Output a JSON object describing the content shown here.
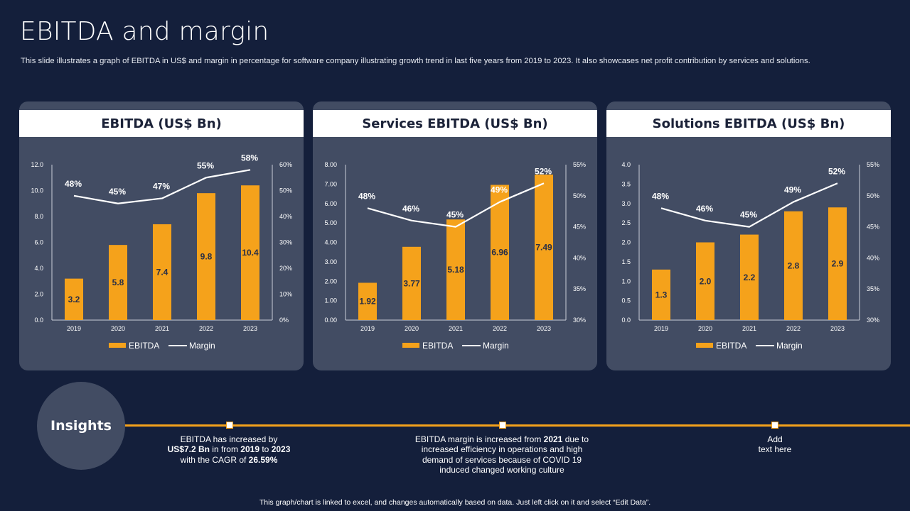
{
  "title": "EBITDA and margin",
  "subtitle": "This slide illustrates a graph of EBITDA  in US$ and margin in percentage for software company illustrating growth trend in last five years from 2019 to 2023. It also showcases net profit contribution by services and solutions.",
  "colors": {
    "background": "#141f3b",
    "panel": "#424c63",
    "bar": "#f5a21b",
    "line": "#ffffff",
    "accent": "#f5a21b"
  },
  "legend": {
    "bar_label": "EBITDA",
    "line_label": "Margin"
  },
  "chart_data": [
    {
      "type": "bar+line",
      "title": "EBITDA (US$ Bn)",
      "categories": [
        "2019",
        "2020",
        "2021",
        "2022",
        "2023"
      ],
      "series": [
        {
          "name": "EBITDA",
          "type": "bar",
          "values": [
            3.2,
            5.8,
            7.4,
            9.8,
            10.4
          ],
          "labels": [
            "3.2",
            "5.8",
            "7.4",
            "9.8",
            "10.4"
          ]
        },
        {
          "name": "Margin",
          "type": "line",
          "values": [
            48,
            45,
            47,
            55,
            58
          ],
          "labels": [
            "48%",
            "45%",
            "47%",
            "55%",
            "58%"
          ]
        }
      ],
      "left_axis": {
        "min": 0,
        "max": 12,
        "ticks": [
          "0.0",
          "2.0",
          "4.0",
          "6.0",
          "8.0",
          "10.0",
          "12.0"
        ]
      },
      "right_axis": {
        "min": 0,
        "max": 60,
        "ticks": [
          "0%",
          "10%",
          "20%",
          "30%",
          "40%",
          "50%",
          "60%"
        ]
      }
    },
    {
      "type": "bar+line",
      "title": "Services EBITDA (US$ Bn)",
      "categories": [
        "2019",
        "2020",
        "2021",
        "2022",
        "2023"
      ],
      "series": [
        {
          "name": "EBITDA",
          "type": "bar",
          "values": [
            1.92,
            3.77,
            5.18,
            6.96,
            7.49
          ],
          "labels": [
            "1.92",
            "3.77",
            "5.18",
            "6.96",
            "7.49"
          ]
        },
        {
          "name": "Margin",
          "type": "line",
          "values": [
            48,
            46,
            45,
            49,
            52
          ],
          "labels": [
            "48%",
            "46%",
            "45%",
            "49%",
            "52%"
          ]
        }
      ],
      "left_axis": {
        "min": 0,
        "max": 8,
        "ticks": [
          "0.00",
          "1.00",
          "2.00",
          "3.00",
          "4.00",
          "5.00",
          "6.00",
          "7.00",
          "8.00"
        ]
      },
      "right_axis": {
        "min": 30,
        "max": 55,
        "ticks": [
          "30%",
          "35%",
          "40%",
          "45%",
          "50%",
          "55%"
        ]
      }
    },
    {
      "type": "bar+line",
      "title": "Solutions EBITDA (US$ Bn)",
      "categories": [
        "2019",
        "2020",
        "2021",
        "2022",
        "2023"
      ],
      "series": [
        {
          "name": "EBITDA",
          "type": "bar",
          "values": [
            1.3,
            2.0,
            2.2,
            2.8,
            2.9
          ],
          "labels": [
            "1.3",
            "2.0",
            "2.2",
            "2.8",
            "2.9"
          ]
        },
        {
          "name": "Margin",
          "type": "line",
          "values": [
            48,
            46,
            45,
            49,
            52
          ],
          "labels": [
            "48%",
            "46%",
            "45%",
            "49%",
            "52%"
          ]
        }
      ],
      "left_axis": {
        "min": 0,
        "max": 4,
        "ticks": [
          "0.0",
          "0.5",
          "1.0",
          "1.5",
          "2.0",
          "2.5",
          "3.0",
          "3.5",
          "4.0"
        ]
      },
      "right_axis": {
        "min": 30,
        "max": 55,
        "ticks": [
          "30%",
          "35%",
          "40%",
          "45%",
          "50%",
          "55%"
        ]
      }
    }
  ],
  "insights": {
    "label": "Insights",
    "items": [
      {
        "parts": [
          {
            "text": "EBITDA  has increased by",
            "bold": false
          },
          {
            "text": "US$7.2 Bn",
            "bold": true
          },
          {
            "text": " in from ",
            "bold": false
          },
          {
            "text": "2019",
            "bold": true
          },
          {
            "text": " to ",
            "bold": false
          },
          {
            "text": "2023",
            "bold": true
          },
          {
            "text": "with the CAGR  of ",
            "bold": false
          },
          {
            "text": "26.59%",
            "bold": true
          }
        ]
      },
      {
        "parts": [
          {
            "text": "EBITDA  margin is increased from ",
            "bold": false
          },
          {
            "text": "2021",
            "bold": true
          },
          {
            "text": " due to increased efficiency in operations and high demand of services because of COVID  19 induced changed working culture",
            "bold": false
          }
        ]
      },
      {
        "parts": [
          {
            "text": "Add",
            "bold": false
          },
          {
            "text": "text here",
            "bold": false
          }
        ]
      }
    ]
  },
  "footer": "This graph/chart is linked to excel, and changes automatically based on data. Just left click on it and select “Edit Data”."
}
